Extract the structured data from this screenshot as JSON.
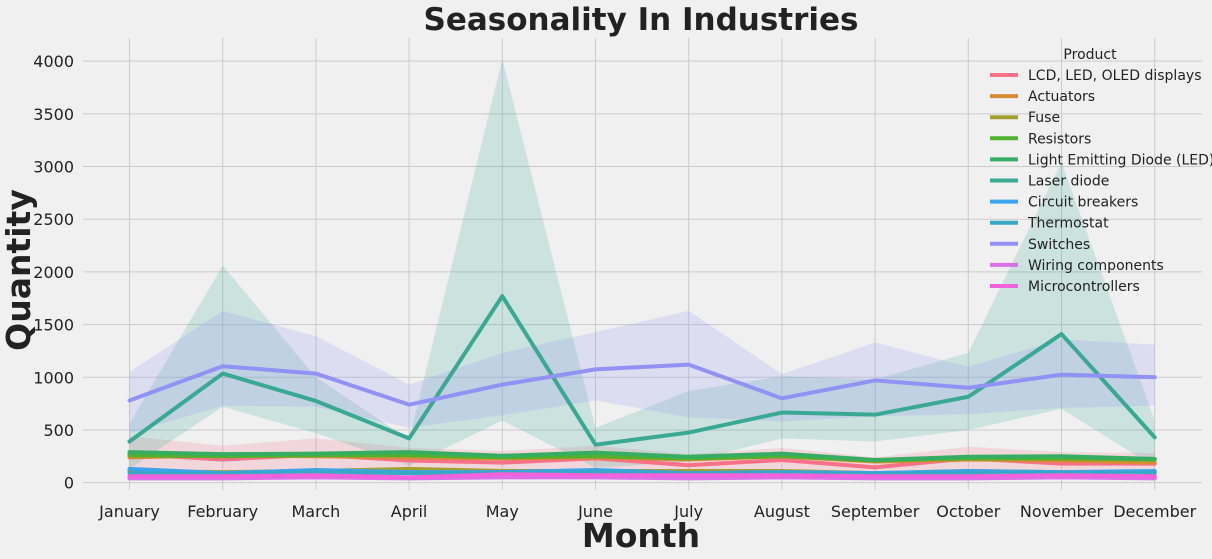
{
  "chart_data": {
    "type": "line",
    "title": "Seasonality In Industries",
    "xlabel": "Month",
    "ylabel": "Quantity",
    "ylim": [
      -70,
      4220
    ],
    "yticks": [
      0,
      500,
      1000,
      1500,
      2000,
      2500,
      3000,
      3500,
      4000
    ],
    "grid": true,
    "legend": {
      "title": "Product",
      "position": "top-right"
    },
    "categories": [
      "January",
      "February",
      "March",
      "April",
      "May",
      "June",
      "July",
      "August",
      "September",
      "October",
      "November",
      "December"
    ],
    "series": [
      {
        "name": "LCD, LED, OLED displays",
        "color": "#f77189",
        "values": [
          270,
          220,
          265,
          210,
          190,
          230,
          165,
          215,
          145,
          230,
          180,
          180
        ],
        "band": {
          "color": "#f77189",
          "lower": [
            120,
            100,
            130,
            100,
            90,
            110,
            80,
            100,
            60,
            110,
            90,
            90
          ],
          "upper": [
            440,
            350,
            420,
            330,
            300,
            350,
            270,
            330,
            240,
            340,
            290,
            280
          ]
        }
      },
      {
        "name": "Actuators",
        "color": "#d58c32",
        "values": [
          240,
          260,
          250,
          240,
          230,
          240,
          220,
          250,
          200,
          220,
          210,
          190
        ]
      },
      {
        "name": "Fuse",
        "color": "#a4a031",
        "values": [
          110,
          100,
          110,
          130,
          110,
          110,
          110,
          110,
          90,
          110,
          100,
          100
        ]
      },
      {
        "name": "Resistors",
        "color": "#50b131",
        "values": [
          260,
          250,
          260,
          260,
          240,
          250,
          230,
          250,
          210,
          230,
          230,
          220
        ]
      },
      {
        "name": "Light Emitting Diode (LED)",
        "color": "#36ad62",
        "values": [
          290,
          270,
          275,
          290,
          255,
          285,
          245,
          275,
          215,
          245,
          250,
          225
        ]
      },
      {
        "name": "Laser diode",
        "color": "#39a994",
        "values": [
          390,
          1035,
          775,
          420,
          1770,
          360,
          475,
          665,
          645,
          815,
          1410,
          430
        ],
        "band": {
          "color": "#39a994",
          "lower": [
            130,
            720,
            470,
            160,
            590,
            140,
            200,
            420,
            390,
            500,
            700,
            150
          ],
          "upper": [
            560,
            2060,
            1000,
            410,
            4020,
            520,
            870,
            1010,
            980,
            1230,
            3040,
            590
          ]
        }
      },
      {
        "name": "Circuit breakers",
        "color": "#3ba3ec",
        "values": [
          130,
          90,
          120,
          100,
          100,
          120,
          90,
          100,
          90,
          110,
          100,
          110
        ]
      },
      {
        "name": "Thermostat",
        "color": "#38a8c5",
        "values": [
          90,
          80,
          100,
          90,
          90,
          100,
          90,
          90,
          80,
          90,
          90,
          90
        ]
      },
      {
        "name": "Switches",
        "color": "#9192f3",
        "values": [
          780,
          1105,
          1035,
          740,
          930,
          1075,
          1120,
          800,
          970,
          900,
          1025,
          1000
        ],
        "band": {
          "color": "#9192f3",
          "lower": [
            470,
            730,
            720,
            520,
            640,
            780,
            620,
            580,
            630,
            650,
            710,
            730
          ],
          "upper": [
            1050,
            1630,
            1390,
            930,
            1230,
            1430,
            1630,
            1030,
            1330,
            1100,
            1360,
            1310
          ]
        }
      },
      {
        "name": "Wiring components",
        "color": "#d970ea",
        "values": [
          40,
          40,
          50,
          40,
          50,
          50,
          40,
          50,
          40,
          40,
          50,
          40
        ]
      },
      {
        "name": "Microcontrollers",
        "color": "#f461dd",
        "values": [
          60,
          60,
          70,
          50,
          80,
          70,
          70,
          70,
          60,
          60,
          70,
          60
        ]
      }
    ]
  }
}
